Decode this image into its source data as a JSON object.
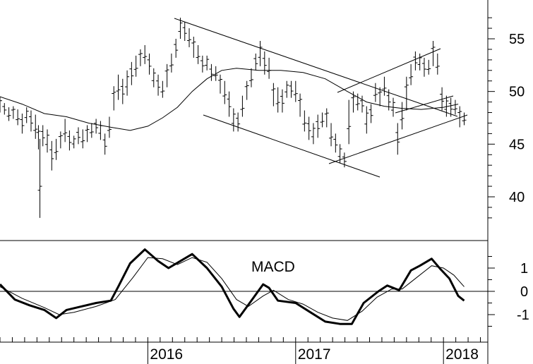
{
  "chart_data": [
    {
      "type": "ohlc",
      "ylabel": "",
      "xlabel": "",
      "ylim": [
        36,
        59
      ],
      "y_ticks": [
        40,
        45,
        50,
        55
      ],
      "moving_average": [
        [
          2015.0,
          49.5
        ],
        [
          2015.15,
          48.8
        ],
        [
          2015.3,
          47.9
        ],
        [
          2015.45,
          47.6
        ],
        [
          2015.6,
          47.0
        ],
        [
          2015.75,
          46.6
        ],
        [
          2015.88,
          46.3
        ],
        [
          2016.0,
          46.7
        ],
        [
          2016.1,
          47.5
        ],
        [
          2016.2,
          48.5
        ],
        [
          2016.3,
          50.0
        ],
        [
          2016.4,
          51.2
        ],
        [
          2016.5,
          52.0
        ],
        [
          2016.6,
          52.2
        ],
        [
          2016.75,
          52.0
        ],
        [
          2016.9,
          52.0
        ],
        [
          2017.05,
          51.8
        ],
        [
          2017.2,
          51.2
        ],
        [
          2017.35,
          50.0
        ],
        [
          2017.48,
          49.0
        ],
        [
          2017.6,
          48.6
        ],
        [
          2017.72,
          48.4
        ],
        [
          2017.85,
          48.3
        ],
        [
          2018.0,
          48.5
        ],
        [
          2018.1,
          48.8
        ]
      ],
      "bars": [
        [
          2015.0,
          49.5,
          48.0
        ],
        [
          2015.03,
          48.9,
          47.8
        ],
        [
          2015.06,
          48.5,
          47.2
        ],
        [
          2015.09,
          48.6,
          47.4
        ],
        [
          2015.12,
          48.3,
          46.8
        ],
        [
          2015.15,
          47.9,
          46.0
        ],
        [
          2015.18,
          48.5,
          47.0
        ],
        [
          2015.21,
          48.2,
          46.2
        ],
        [
          2015.24,
          47.8,
          45.5
        ],
        [
          2015.26,
          46.8,
          44.5
        ],
        [
          2015.27,
          45.5,
          38.0
        ],
        [
          2015.29,
          46.8,
          44.8
        ],
        [
          2015.32,
          46.4,
          44.2
        ],
        [
          2015.35,
          45.3,
          42.5
        ],
        [
          2015.38,
          45.5,
          43.5
        ],
        [
          2015.41,
          46.2,
          44.6
        ],
        [
          2015.44,
          47.4,
          45.2
        ],
        [
          2015.47,
          46.3,
          44.4
        ],
        [
          2015.5,
          45.8,
          44.6
        ],
        [
          2015.53,
          46.6,
          45.0
        ],
        [
          2015.56,
          46.4,
          44.6
        ],
        [
          2015.59,
          46.8,
          45.2
        ],
        [
          2015.62,
          47.0,
          45.6
        ],
        [
          2015.65,
          47.4,
          46.0
        ],
        [
          2015.68,
          47.2,
          45.4
        ],
        [
          2015.71,
          46.0,
          44.0
        ],
        [
          2015.74,
          47.6,
          45.6
        ],
        [
          2015.77,
          50.5,
          48.2
        ],
        [
          2015.8,
          51.6,
          49.2
        ],
        [
          2015.83,
          51.2,
          48.8
        ],
        [
          2015.86,
          52.0,
          49.6
        ],
        [
          2015.89,
          52.8,
          50.6
        ],
        [
          2015.92,
          53.4,
          51.4
        ],
        [
          2015.95,
          54.0,
          52.4
        ],
        [
          2015.98,
          54.4,
          52.6
        ],
        [
          2016.01,
          53.6,
          51.6
        ],
        [
          2016.04,
          52.2,
          50.4
        ],
        [
          2016.07,
          51.6,
          49.6
        ],
        [
          2016.1,
          51.0,
          49.4
        ],
        [
          2016.13,
          52.6,
          50.4
        ],
        [
          2016.16,
          53.6,
          51.8
        ],
        [
          2016.19,
          55.0,
          53.2
        ],
        [
          2016.22,
          57.0,
          55.0
        ],
        [
          2016.25,
          56.6,
          54.8
        ],
        [
          2016.28,
          56.0,
          54.2
        ],
        [
          2016.31,
          55.2,
          53.2
        ],
        [
          2016.34,
          54.4,
          52.6
        ],
        [
          2016.37,
          53.4,
          51.8
        ],
        [
          2016.4,
          53.4,
          52.0
        ],
        [
          2016.43,
          52.6,
          51.0
        ],
        [
          2016.46,
          52.4,
          51.0
        ],
        [
          2016.49,
          51.6,
          49.8
        ],
        [
          2016.52,
          51.0,
          48.8
        ],
        [
          2016.55,
          50.0,
          47.6
        ],
        [
          2016.58,
          48.4,
          46.2
        ],
        [
          2016.61,
          48.0,
          46.2
        ],
        [
          2016.64,
          49.6,
          47.6
        ],
        [
          2016.67,
          51.0,
          49.2
        ],
        [
          2016.7,
          52.2,
          50.4
        ],
        [
          2016.73,
          53.6,
          52.0
        ],
        [
          2016.76,
          54.8,
          52.4
        ],
        [
          2016.79,
          53.8,
          51.6
        ],
        [
          2016.82,
          53.2,
          51.2
        ],
        [
          2016.85,
          50.8,
          48.6
        ],
        [
          2016.88,
          50.4,
          48.0
        ],
        [
          2016.91,
          50.2,
          48.0
        ],
        [
          2016.94,
          51.0,
          49.4
        ],
        [
          2016.97,
          51.0,
          49.4
        ],
        [
          2017.0,
          51.0,
          49.0
        ],
        [
          2017.03,
          49.8,
          47.6
        ],
        [
          2017.06,
          48.2,
          46.2
        ],
        [
          2017.09,
          47.6,
          45.4
        ],
        [
          2017.12,
          47.0,
          45.0
        ],
        [
          2017.15,
          47.8,
          45.6
        ],
        [
          2017.18,
          48.0,
          46.6
        ],
        [
          2017.21,
          48.4,
          46.6
        ],
        [
          2017.24,
          47.0,
          44.8
        ],
        [
          2017.27,
          46.0,
          44.2
        ],
        [
          2017.3,
          45.0,
          43.2
        ],
        [
          2017.33,
          44.2,
          42.8
        ],
        [
          2017.36,
          49.2,
          45.0
        ],
        [
          2017.39,
          50.0,
          48.0
        ],
        [
          2017.42,
          49.8,
          48.2
        ],
        [
          2017.45,
          49.6,
          48.0
        ],
        [
          2017.48,
          48.6,
          46.0
        ],
        [
          2017.51,
          48.8,
          47.0
        ],
        [
          2017.54,
          50.8,
          49.0
        ],
        [
          2017.57,
          50.4,
          48.6
        ],
        [
          2017.6,
          51.4,
          49.6
        ],
        [
          2017.63,
          50.2,
          48.2
        ],
        [
          2017.66,
          49.4,
          47.6
        ],
        [
          2017.69,
          47.0,
          44.0
        ],
        [
          2017.72,
          49.0,
          46.4
        ],
        [
          2017.75,
          51.4,
          48.2
        ],
        [
          2017.78,
          52.6,
          50.6
        ],
        [
          2017.81,
          53.8,
          52.0
        ],
        [
          2017.84,
          53.6,
          52.0
        ],
        [
          2017.87,
          53.2,
          51.4
        ],
        [
          2017.9,
          53.0,
          51.6
        ],
        [
          2017.93,
          54.8,
          52.4
        ],
        [
          2017.96,
          53.6,
          51.6
        ],
        [
          2017.99,
          50.4,
          48.2
        ],
        [
          2018.02,
          49.6,
          47.6
        ],
        [
          2018.05,
          49.4,
          47.6
        ],
        [
          2018.08,
          49.2,
          47.8
        ],
        [
          2018.11,
          48.6,
          46.6
        ],
        [
          2018.14,
          48.0,
          46.8
        ]
      ]
    },
    {
      "type": "line",
      "title": "MACD",
      "ylabel": "",
      "xlabel": "",
      "ylim": [
        -1.9,
        2.1
      ],
      "y_ticks": [
        1,
        0,
        -1
      ],
      "y_tick_labels": [
        "1",
        "0",
        "-1"
      ],
      "zero_line": 0,
      "x_tick_labels": [
        "2016",
        "2017",
        "2018"
      ],
      "x_ticks": [
        2016.0,
        2017.0,
        2018.0
      ],
      "xlim": [
        2015.35,
        2018.44
      ],
      "series": [
        {
          "values": [
            [
              2015.0,
              0.3
            ],
            [
              2015.1,
              -0.35
            ],
            [
              2015.2,
              -0.6
            ],
            [
              2015.3,
              -0.8
            ],
            [
              2015.38,
              -1.15
            ],
            [
              2015.45,
              -0.8
            ],
            [
              2015.55,
              -0.65
            ],
            [
              2015.65,
              -0.5
            ],
            [
              2015.75,
              -0.4
            ],
            [
              2015.8,
              0.2
            ],
            [
              2015.88,
              1.2
            ],
            [
              2015.98,
              1.8
            ],
            [
              2016.07,
              1.3
            ],
            [
              2016.14,
              1.0
            ],
            [
              2016.22,
              1.3
            ],
            [
              2016.3,
              1.6
            ],
            [
              2016.4,
              1.0
            ],
            [
              2016.5,
              0.2
            ],
            [
              2016.58,
              -0.75
            ],
            [
              2016.62,
              -1.1
            ],
            [
              2016.7,
              -0.4
            ],
            [
              2016.78,
              0.3
            ],
            [
              2016.82,
              0.15
            ],
            [
              2016.88,
              -0.4
            ],
            [
              2017.0,
              -0.5
            ],
            [
              2017.1,
              -0.9
            ],
            [
              2017.2,
              -1.3
            ],
            [
              2017.3,
              -1.4
            ],
            [
              2017.38,
              -1.4
            ],
            [
              2017.46,
              -0.5
            ],
            [
              2017.56,
              0.0
            ],
            [
              2017.62,
              0.25
            ],
            [
              2017.7,
              0.05
            ],
            [
              2017.78,
              0.9
            ],
            [
              2017.84,
              1.1
            ],
            [
              2017.92,
              1.4
            ],
            [
              2017.98,
              0.95
            ],
            [
              2018.04,
              0.55
            ],
            [
              2018.1,
              -0.2
            ],
            [
              2018.14,
              -0.4
            ]
          ]
        },
        {
          "values": [
            [
              2015.0,
              0.2
            ],
            [
              2015.15,
              -0.3
            ],
            [
              2015.3,
              -0.7
            ],
            [
              2015.4,
              -1.0
            ],
            [
              2015.5,
              -0.9
            ],
            [
              2015.65,
              -0.65
            ],
            [
              2015.78,
              -0.35
            ],
            [
              2015.9,
              0.6
            ],
            [
              2016.0,
              1.45
            ],
            [
              2016.1,
              1.4
            ],
            [
              2016.2,
              1.15
            ],
            [
              2016.3,
              1.45
            ],
            [
              2016.4,
              1.25
            ],
            [
              2016.5,
              0.55
            ],
            [
              2016.6,
              -0.35
            ],
            [
              2016.68,
              -0.65
            ],
            [
              2016.78,
              -0.2
            ],
            [
              2016.85,
              0.05
            ],
            [
              2016.95,
              -0.35
            ],
            [
              2017.05,
              -0.55
            ],
            [
              2017.15,
              -0.9
            ],
            [
              2017.25,
              -1.15
            ],
            [
              2017.35,
              -1.25
            ],
            [
              2017.45,
              -0.85
            ],
            [
              2017.55,
              -0.25
            ],
            [
              2017.65,
              0.1
            ],
            [
              2017.72,
              0.1
            ],
            [
              2017.82,
              0.6
            ],
            [
              2017.92,
              1.1
            ],
            [
              2018.0,
              1.0
            ],
            [
              2018.07,
              0.7
            ],
            [
              2018.14,
              0.2
            ]
          ]
        }
      ]
    }
  ]
}
